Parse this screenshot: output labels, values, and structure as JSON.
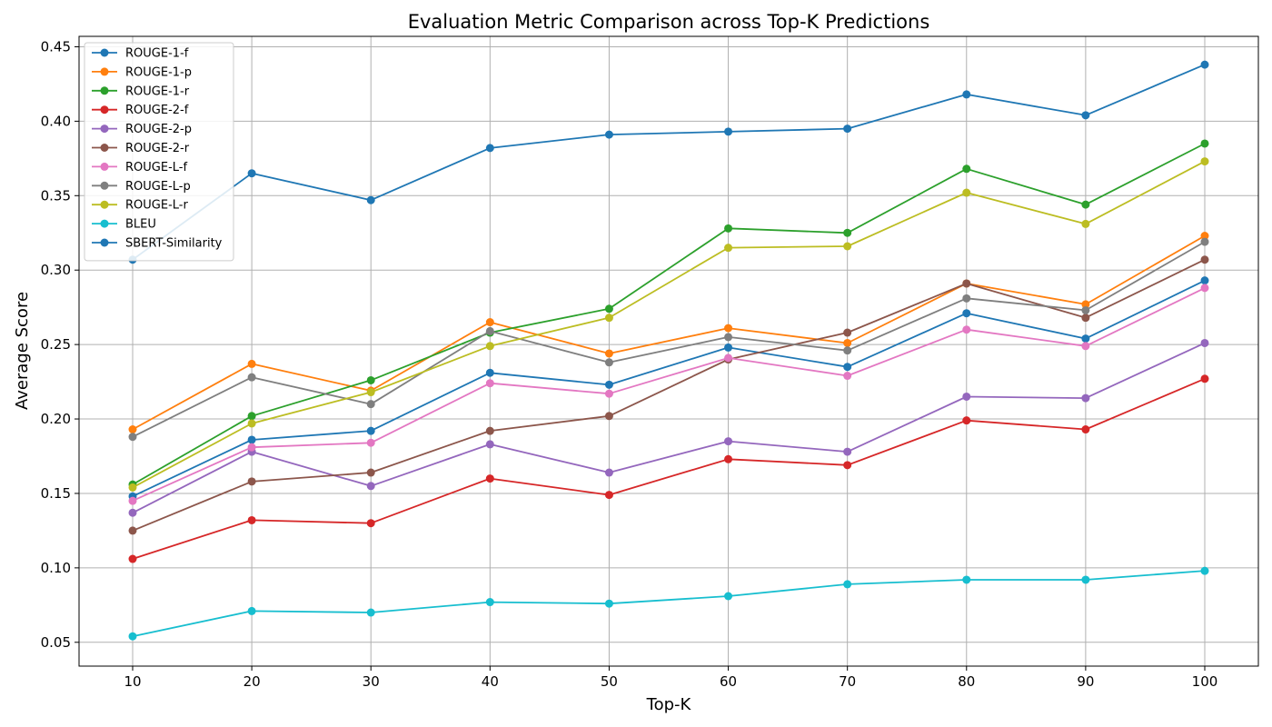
{
  "chart_data": {
    "type": "line",
    "title": "Evaluation Metric Comparison across Top-K Predictions",
    "xlabel": "Top-K",
    "ylabel": "Average Score",
    "x": [
      10,
      20,
      30,
      40,
      50,
      60,
      70,
      80,
      90,
      100
    ],
    "xlim": [
      5.5,
      104.5
    ],
    "ylim": [
      0.034,
      0.457
    ],
    "yticks": [
      "0.05",
      "0.10",
      "0.15",
      "0.20",
      "0.25",
      "0.30",
      "0.35",
      "0.40",
      "0.45"
    ],
    "xticks": [
      "10",
      "20",
      "30",
      "40",
      "50",
      "60",
      "70",
      "80",
      "90",
      "100"
    ],
    "grid": true,
    "legend_position": "upper left",
    "marker": "circle",
    "series": [
      {
        "name": "ROUGE-1-f",
        "color": "#1f77b4",
        "values": [
          0.148,
          0.186,
          0.192,
          0.231,
          0.223,
          0.248,
          0.235,
          0.271,
          0.254,
          0.293
        ]
      },
      {
        "name": "ROUGE-1-p",
        "color": "#ff7f0e",
        "values": [
          0.193,
          0.237,
          0.219,
          0.265,
          0.244,
          0.261,
          0.251,
          0.291,
          0.277,
          0.323
        ]
      },
      {
        "name": "ROUGE-1-r",
        "color": "#2ca02c",
        "values": [
          0.156,
          0.202,
          0.226,
          0.258,
          0.274,
          0.328,
          0.325,
          0.368,
          0.344,
          0.385
        ]
      },
      {
        "name": "ROUGE-2-f",
        "color": "#d62728",
        "values": [
          0.106,
          0.132,
          0.13,
          0.16,
          0.149,
          0.173,
          0.169,
          0.199,
          0.193,
          0.227
        ]
      },
      {
        "name": "ROUGE-2-p",
        "color": "#9467bd",
        "values": [
          0.137,
          0.178,
          0.155,
          0.183,
          0.164,
          0.185,
          0.178,
          0.215,
          0.214,
          0.251
        ]
      },
      {
        "name": "ROUGE-2-r",
        "color": "#8c564b",
        "values": [
          0.125,
          0.158,
          0.164,
          0.192,
          0.202,
          0.24,
          0.258,
          0.291,
          0.268,
          0.307
        ]
      },
      {
        "name": "ROUGE-L-f",
        "color": "#e377c2",
        "values": [
          0.145,
          0.181,
          0.184,
          0.224,
          0.217,
          0.241,
          0.229,
          0.26,
          0.249,
          0.288
        ]
      },
      {
        "name": "ROUGE-L-p",
        "color": "#7f7f7f",
        "values": [
          0.188,
          0.228,
          0.21,
          0.259,
          0.238,
          0.255,
          0.246,
          0.281,
          0.273,
          0.319
        ]
      },
      {
        "name": "ROUGE-L-r",
        "color": "#bcbd22",
        "values": [
          0.154,
          0.197,
          0.218,
          0.249,
          0.268,
          0.315,
          0.316,
          0.352,
          0.331,
          0.373
        ]
      },
      {
        "name": "BLEU",
        "color": "#17becf",
        "values": [
          0.054,
          0.071,
          0.07,
          0.077,
          0.076,
          0.081,
          0.089,
          0.092,
          0.092,
          0.098
        ]
      },
      {
        "name": "SBERT-Similarity",
        "color": "#1f77b4",
        "values": [
          0.307,
          0.365,
          0.347,
          0.382,
          0.391,
          0.393,
          0.395,
          0.418,
          0.404,
          0.438
        ]
      }
    ]
  }
}
